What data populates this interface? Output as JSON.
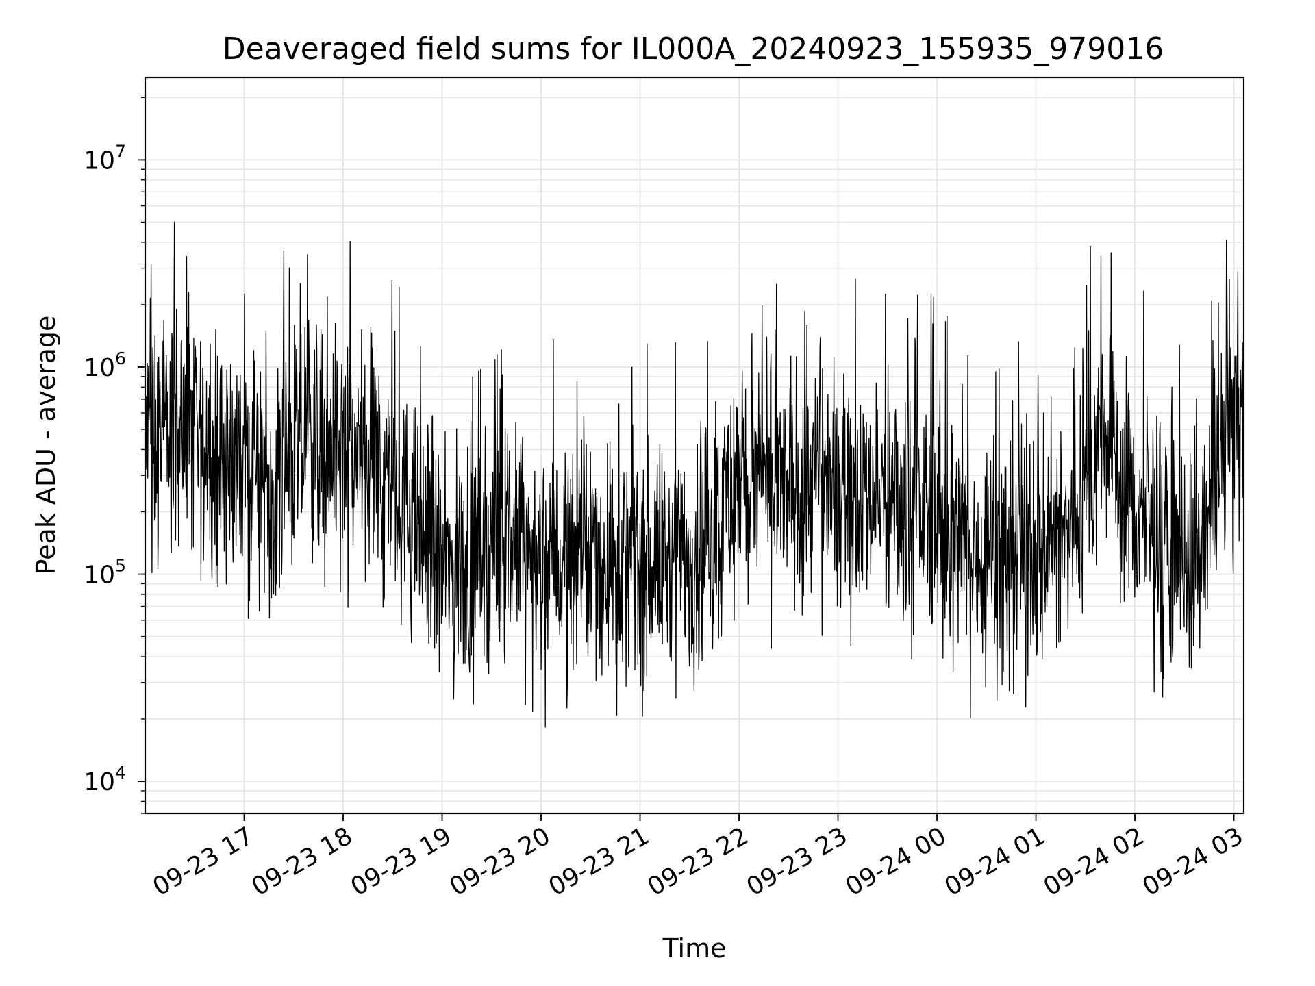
{
  "chart_data": {
    "type": "line",
    "title": "Deaveraged field sums for IL000A_20240923_155935_979016",
    "xlabel": "Time",
    "ylabel": "Peak ADU - average",
    "y_scale": "log",
    "ylim": [
      7000,
      25000000
    ],
    "xlim": [
      "2024-09-23 16:00",
      "2024-09-24 03:06"
    ],
    "x_ticks": [
      "09-23 17",
      "09-23 18",
      "09-23 19",
      "09-23 20",
      "09-23 21",
      "09-23 22",
      "09-23 23",
      "09-24 00",
      "09-24 01",
      "09-24 02",
      "09-24 03"
    ],
    "y_ticks": [
      {
        "base": "10",
        "exp": "4"
      },
      {
        "base": "10",
        "exp": "5"
      },
      {
        "base": "10",
        "exp": "6"
      },
      {
        "base": "10",
        "exp": "7"
      }
    ],
    "grid": true,
    "line_color": "#000000",
    "grid_color": "#e6e6e6",
    "series": [
      {
        "x": [
          "2024-09-23 16:00",
          "2024-09-23 16:20",
          "2024-09-23 16:40",
          "2024-09-23 17:00",
          "2024-09-23 17:20",
          "2024-09-23 17:40",
          "2024-09-23 18:00",
          "2024-09-23 18:20",
          "2024-09-23 18:40",
          "2024-09-23 19:00",
          "2024-09-23 19:20",
          "2024-09-23 19:40",
          "2024-09-23 20:00",
          "2024-09-23 20:20",
          "2024-09-23 20:40",
          "2024-09-23 21:00",
          "2024-09-23 21:20",
          "2024-09-23 21:40",
          "2024-09-23 22:00",
          "2024-09-23 22:20",
          "2024-09-23 22:40",
          "2024-09-23 23:00",
          "2024-09-23 23:20",
          "2024-09-23 23:40",
          "2024-09-24 00:00",
          "2024-09-24 00:20",
          "2024-09-24 00:40",
          "2024-09-24 01:00",
          "2024-09-24 01:20",
          "2024-09-24 01:40",
          "2024-09-24 02:00",
          "2024-09-24 02:20",
          "2024-09-24 02:40",
          "2024-09-24 03:00"
        ],
        "y": [
          450000,
          500000,
          400000,
          350000,
          300000,
          450000,
          400000,
          350000,
          200000,
          100000,
          120000,
          150000,
          110000,
          130000,
          120000,
          110000,
          120000,
          130000,
          300000,
          250000,
          280000,
          300000,
          250000,
          200000,
          200000,
          120000,
          150000,
          130000,
          150000,
          500000,
          200000,
          150000,
          120000,
          600000
        ]
      }
    ]
  }
}
